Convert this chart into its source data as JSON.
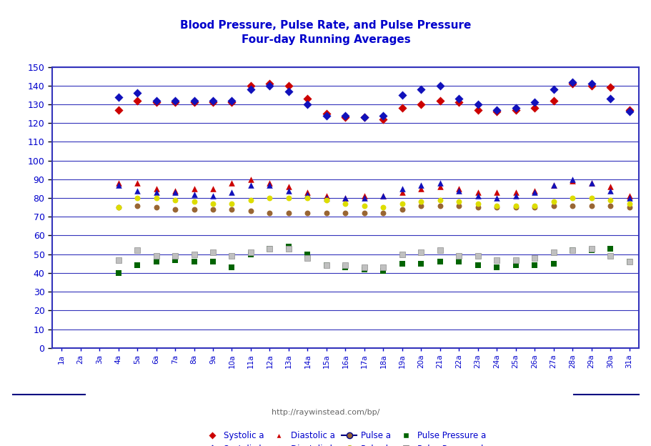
{
  "title": "Blood Pressure, Pulse Rate, and Pulse Pressure\nFour-day Running Averages",
  "url_text": "http://raywinstead.com/bp/",
  "x_labels": [
    "1a",
    "2a",
    "3a",
    "4a",
    "5a",
    "6a",
    "7a",
    "8a",
    "9a",
    "10a",
    "11a",
    "12a",
    "13a",
    "14a",
    "15a",
    "16a",
    "17a",
    "18a",
    "19a",
    "20a",
    "21a",
    "22a",
    "23a",
    "24a",
    "25a",
    "26a",
    "27a",
    "28a",
    "29a",
    "30a",
    "31a"
  ],
  "systolic_a": [
    null,
    null,
    null,
    127,
    132,
    131,
    131,
    131,
    131,
    131,
    140,
    141,
    140,
    133,
    125,
    123,
    123,
    122,
    128,
    130,
    132,
    131,
    127,
    126,
    127,
    128,
    132,
    141,
    140,
    139,
    127
  ],
  "systolic_b": [
    null,
    null,
    null,
    134,
    136,
    132,
    132,
    132,
    132,
    132,
    138,
    140,
    137,
    130,
    124,
    124,
    123,
    124,
    135,
    138,
    140,
    133,
    130,
    127,
    128,
    131,
    138,
    142,
    141,
    133,
    126
  ],
  "diastolic_a": [
    null,
    null,
    null,
    88,
    88,
    85,
    84,
    85,
    85,
    88,
    90,
    88,
    86,
    83,
    81,
    80,
    81,
    81,
    83,
    85,
    86,
    85,
    83,
    83,
    83,
    84,
    87,
    89,
    88,
    86,
    81
  ],
  "diastolic_b": [
    null,
    null,
    null,
    87,
    84,
    83,
    83,
    82,
    81,
    83,
    87,
    87,
    84,
    82,
    80,
    80,
    80,
    81,
    85,
    87,
    88,
    84,
    81,
    80,
    81,
    83,
    87,
    90,
    88,
    84,
    80
  ],
  "pulse_a": [
    null,
    null,
    null,
    75,
    76,
    75,
    74,
    74,
    74,
    74,
    73,
    72,
    72,
    72,
    72,
    72,
    72,
    72,
    74,
    76,
    76,
    76,
    75,
    75,
    75,
    75,
    76,
    76,
    76,
    76,
    75
  ],
  "pulse_b": [
    null,
    null,
    null,
    75,
    80,
    80,
    79,
    78,
    77,
    77,
    79,
    80,
    80,
    80,
    79,
    77,
    76,
    75,
    77,
    78,
    79,
    78,
    77,
    76,
    76,
    76,
    78,
    80,
    80,
    79,
    77
  ],
  "pulse_pressure_a": [
    null,
    null,
    null,
    40,
    44,
    46,
    47,
    46,
    46,
    43,
    50,
    53,
    54,
    50,
    44,
    43,
    42,
    41,
    45,
    45,
    46,
    46,
    44,
    43,
    44,
    44,
    45,
    52,
    52,
    53,
    46
  ],
  "pulse_pressure_b": [
    null,
    null,
    null,
    47,
    52,
    49,
    49,
    50,
    51,
    49,
    51,
    53,
    53,
    48,
    44,
    44,
    43,
    43,
    50,
    51,
    52,
    49,
    49,
    47,
    47,
    48,
    51,
    52,
    53,
    49,
    46
  ],
  "ylim": [
    0,
    150
  ],
  "yticks": [
    0,
    10,
    20,
    30,
    40,
    50,
    60,
    70,
    80,
    90,
    100,
    110,
    120,
    130,
    140,
    150
  ],
  "bg_color": "#FFFFFF",
  "grid_color": "#3333BB",
  "title_color": "#0000CC",
  "systolic_a_color": "#CC0000",
  "systolic_b_color": "#1111BB",
  "diastolic_a_color": "#CC0000",
  "diastolic_b_color": "#1111BB",
  "pulse_a_color": "#996633",
  "pulse_b_color": "#DDDD00",
  "pulse_pressure_a_color": "#006400",
  "pulse_pressure_b_color": "#C0C0C0",
  "legend_line_color": "#000080"
}
